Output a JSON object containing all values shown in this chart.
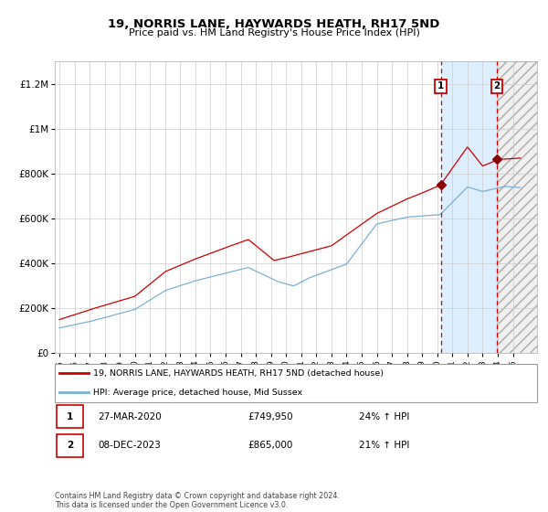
{
  "title": "19, NORRIS LANE, HAYWARDS HEATH, RH17 5ND",
  "subtitle": "Price paid vs. HM Land Registry's House Price Index (HPI)",
  "legend_line1": "19, NORRIS LANE, HAYWARDS HEATH, RH17 5ND (detached house)",
  "legend_line2": "HPI: Average price, detached house, Mid Sussex",
  "transaction1_date": "27-MAR-2020",
  "transaction1_price": 749950,
  "transaction1_hpi": "24% ↑ HPI",
  "transaction2_date": "08-DEC-2023",
  "transaction2_price": 865000,
  "transaction2_hpi": "21% ↑ HPI",
  "red_line_color": "#cc0000",
  "blue_line_color": "#7ab0d4",
  "vline_color": "#cc0000",
  "shade1_color": "#ddeeff",
  "footer": "Contains HM Land Registry data © Crown copyright and database right 2024.\nThis data is licensed under the Open Government Licence v3.0.",
  "ylim": [
    0,
    1300000
  ],
  "transaction1_year": 2020.23,
  "transaction2_year": 2023.93,
  "marker_color": "#8B0000"
}
